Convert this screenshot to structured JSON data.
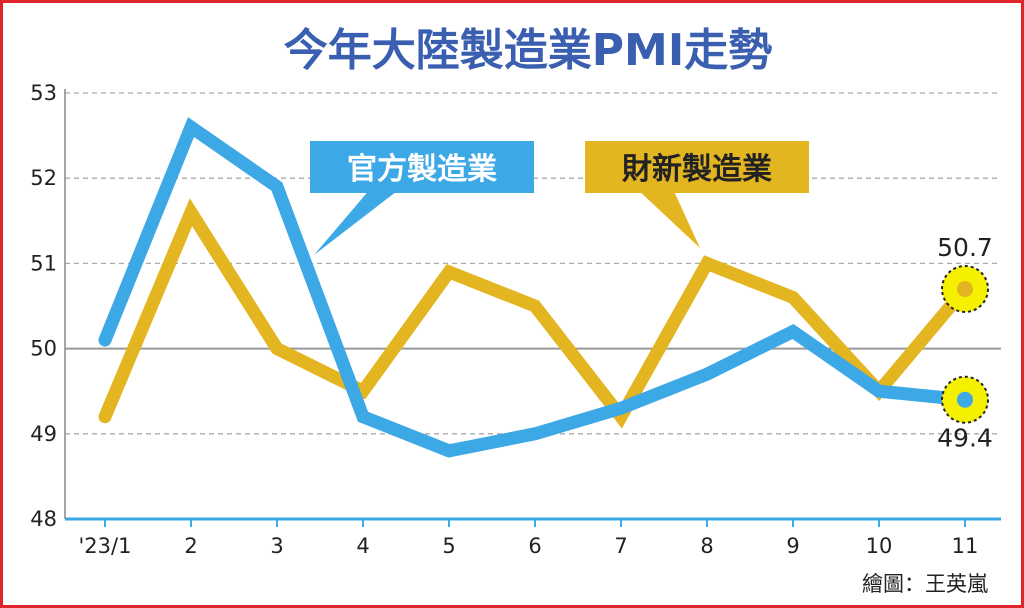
{
  "chart_data": {
    "type": "line",
    "title": "今年大陸製造業PMI走勢",
    "categories": [
      "'23/1",
      "2",
      "3",
      "4",
      "5",
      "6",
      "7",
      "8",
      "9",
      "10",
      "11"
    ],
    "y_ticks": [
      "48",
      "49",
      "50",
      "51",
      "52",
      "53"
    ],
    "ylim": [
      48,
      53
    ],
    "reference_line": 50,
    "grid": "horizontal dashed",
    "series": [
      {
        "name": "官方製造業",
        "color": "#3da8e6",
        "values": [
          50.1,
          52.6,
          51.9,
          49.2,
          48.8,
          49.0,
          49.3,
          49.7,
          50.2,
          49.5,
          49.4
        ]
      },
      {
        "name": "財新製造業",
        "color": "#e3b520",
        "values": [
          49.2,
          51.6,
          50.0,
          49.5,
          50.9,
          50.5,
          49.2,
          51.0,
          50.6,
          49.5,
          50.7
        ]
      }
    ],
    "annotations": [
      {
        "text": "50.7",
        "series": 1,
        "index": 10
      },
      {
        "text": "49.4",
        "series": 0,
        "index": 10
      }
    ],
    "highlight_color": "#f5f000",
    "credit": "繪圖：王英嵐"
  }
}
